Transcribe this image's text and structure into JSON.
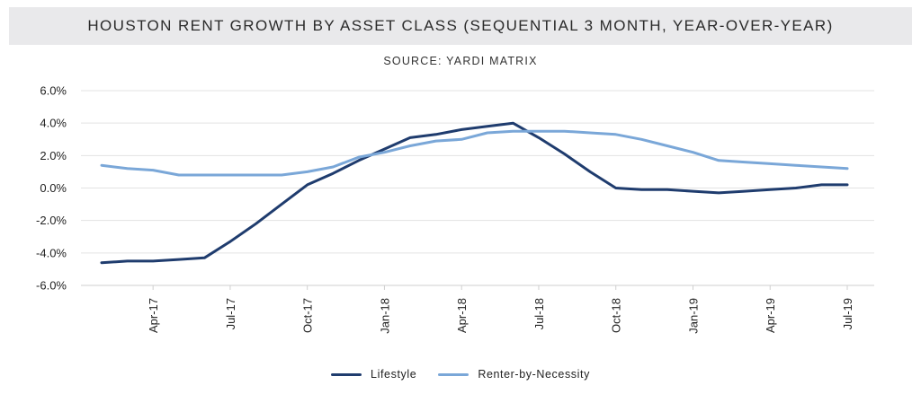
{
  "chart_data": {
    "type": "line",
    "title": "HOUSTON RENT GROWTH BY ASSET CLASS (SEQUENTIAL 3 MONTH, YEAR-OVER-YEAR)",
    "subtitle": "SOURCE: YARDI MATRIX",
    "xlabel": "",
    "ylabel": "",
    "ylim": [
      -6.0,
      6.0
    ],
    "yticks": [
      "6.0%",
      "4.0%",
      "2.0%",
      "0.0%",
      "-2.0%",
      "-4.0%",
      "-6.0%"
    ],
    "ytick_values": [
      6,
      4,
      2,
      0,
      -2,
      -4,
      -6
    ],
    "x": [
      "Feb-17",
      "Mar-17",
      "Apr-17",
      "May-17",
      "Jun-17",
      "Jul-17",
      "Aug-17",
      "Sep-17",
      "Oct-17",
      "Nov-17",
      "Dec-17",
      "Jan-18",
      "Feb-18",
      "Mar-18",
      "Apr-18",
      "May-18",
      "Jun-18",
      "Jul-18",
      "Aug-18",
      "Sep-18",
      "Oct-18",
      "Nov-18",
      "Dec-18",
      "Jan-19",
      "Feb-19",
      "Mar-19",
      "Apr-19",
      "May-19",
      "Jun-19",
      "Jul-19"
    ],
    "xtick_labels": [
      "Apr-17",
      "Jul-17",
      "Oct-17",
      "Jan-18",
      "Apr-18",
      "Jul-18",
      "Oct-18",
      "Jan-19",
      "Apr-19",
      "Jul-19"
    ],
    "xtick_indices": [
      2,
      5,
      8,
      11,
      14,
      17,
      20,
      23,
      26,
      29
    ],
    "series": [
      {
        "name": "Lifestyle",
        "color": "#1f3c6e",
        "values": [
          -4.6,
          -4.5,
          -4.5,
          -4.4,
          -4.3,
          -3.3,
          -2.2,
          -1.0,
          0.2,
          0.9,
          1.7,
          2.4,
          3.1,
          3.3,
          3.6,
          3.8,
          4.0,
          3.1,
          2.1,
          1.0,
          0.0,
          -0.1,
          -0.1,
          -0.2,
          -0.3,
          -0.2,
          -0.1,
          0.0,
          0.2,
          0.2
        ]
      },
      {
        "name": "Renter-by-Necessity",
        "color": "#7aa7d8",
        "values": [
          1.4,
          1.2,
          1.1,
          0.8,
          0.8,
          0.8,
          0.8,
          0.8,
          1.0,
          1.3,
          1.9,
          2.2,
          2.6,
          2.9,
          3.0,
          3.4,
          3.5,
          3.5,
          3.5,
          3.4,
          3.3,
          3.0,
          2.6,
          2.2,
          1.7,
          1.6,
          1.5,
          1.4,
          1.3,
          1.2
        ]
      }
    ],
    "legend": [
      "Lifestyle",
      "Renter-by-Necessity"
    ],
    "legend_position": "bottom-center",
    "grid": true
  }
}
